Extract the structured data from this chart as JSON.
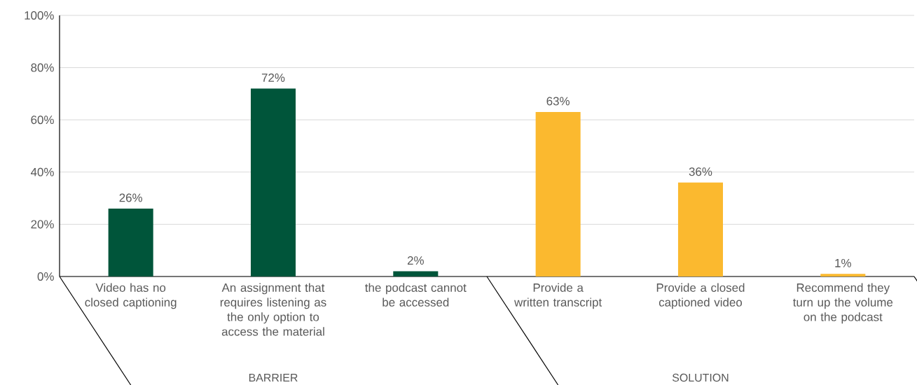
{
  "chart_data": {
    "type": "bar",
    "categories": [
      "Video has no closed captioning",
      "An assignment that requires listening as the only option to access the material",
      "the podcast cannot be accessed",
      "Provide a written transcript",
      "Provide a closed captioned video",
      "Recommend they turn up the volume on the podcast"
    ],
    "values": [
      26,
      72,
      2,
      63,
      36,
      1
    ],
    "colors": [
      "#00553a",
      "#00553a",
      "#00553a",
      "#fbb92f",
      "#fbb92f",
      "#fbb92f"
    ],
    "value_labels": [
      "26%",
      "72%",
      "2%",
      "63%",
      "36%",
      "1%"
    ],
    "ylim": [
      0,
      100
    ],
    "yticks": [
      {
        "value": 0,
        "label": "0%"
      },
      {
        "value": 20,
        "label": "20%"
      },
      {
        "value": 40,
        "label": "40%"
      },
      {
        "value": 60,
        "label": "60%"
      },
      {
        "value": 80,
        "label": "80%"
      },
      {
        "value": 100,
        "label": "100%"
      }
    ],
    "grid": "y",
    "annotations": [
      "BARRIER",
      "SOLUTION"
    ]
  }
}
